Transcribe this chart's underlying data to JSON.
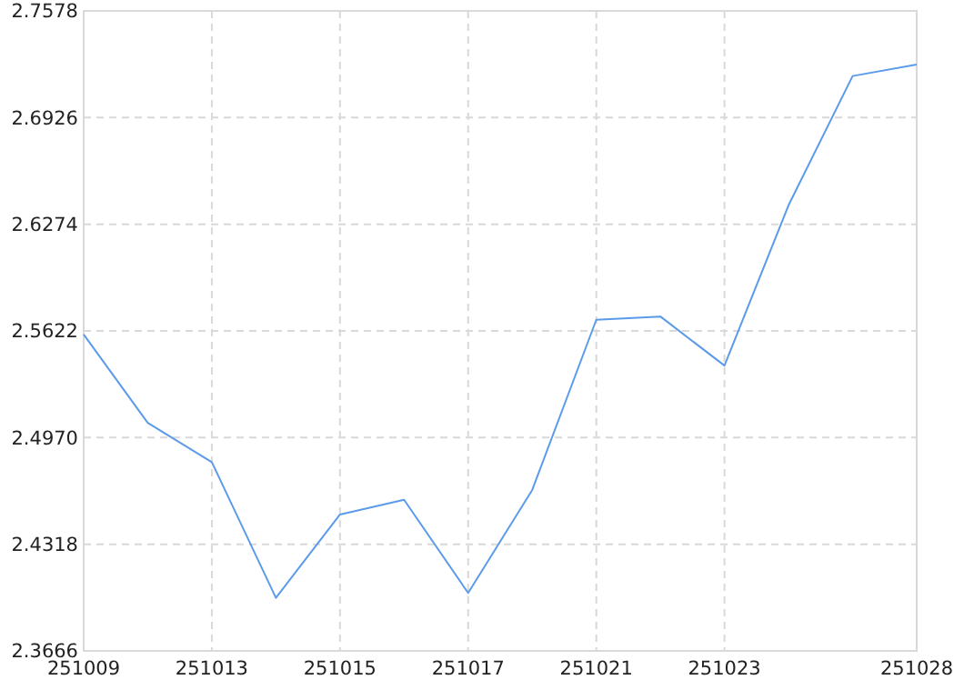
{
  "chart_data": {
    "type": "line",
    "categories": [
      "251009",
      null,
      "251013",
      null,
      "251015",
      null,
      "251017",
      null,
      "251021",
      null,
      "251023",
      null,
      null,
      "251028"
    ],
    "series": [
      {
        "color": "#5b9bea",
        "values": [
          2.56,
          2.506,
          2.482,
          2.399,
          2.45,
          2.459,
          2.402,
          2.465,
          2.569,
          2.571,
          2.541,
          2.639,
          2.718,
          2.725
        ]
      }
    ],
    "ylim": [
      2.3666,
      2.7578
    ],
    "yticks": [
      2.3666,
      2.4318,
      {
        "value": 2.497,
        "label": "2.4970"
      },
      2.5622,
      2.6274,
      2.6926,
      2.7578
    ],
    "grid": true,
    "marker": "none",
    "line_style": "solid"
  }
}
